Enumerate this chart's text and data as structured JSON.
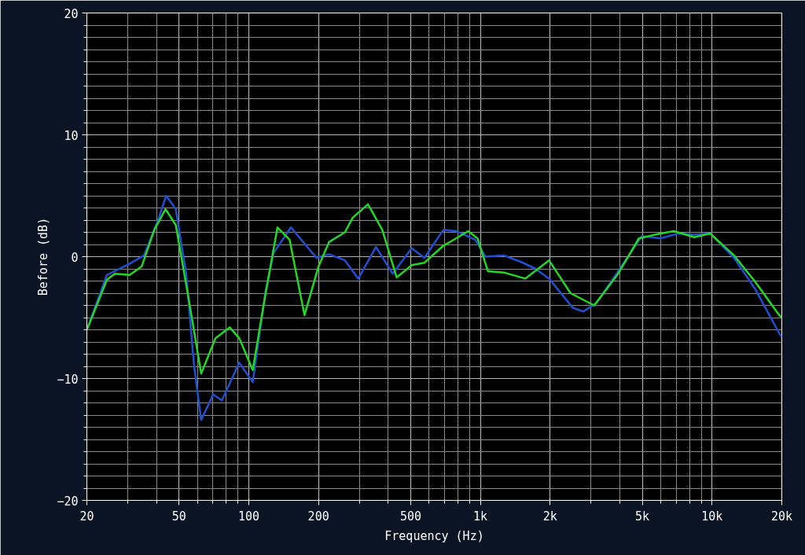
{
  "chart_data": {
    "type": "line",
    "xlabel": "Frequency (Hz)",
    "ylabel": "Before (dB)",
    "log": "x",
    "grid": true,
    "marker": "none",
    "line_style": "solid",
    "xlim": [
      20,
      20000
    ],
    "ylim": [
      -20,
      20
    ],
    "xticks": [
      20,
      50,
      100,
      200,
      500,
      {
        "value": 1000,
        "label": "1k"
      },
      {
        "value": 2000,
        "label": "2k"
      },
      {
        "value": 5000,
        "label": "5k"
      },
      {
        "value": 10000,
        "label": "10k"
      },
      {
        "value": 20000,
        "label": "20k"
      }
    ],
    "yticks": [
      -20,
      -10,
      0,
      10,
      20
    ],
    "series": [
      {
        "color": "#2050d0",
        "x": [
          20,
          24.4,
          30.1,
          35.3,
          40.4,
          44,
          48.4,
          53.7,
          58,
          62.3,
          70.2,
          76.5,
          91,
          104,
          118,
          128,
          152,
          196,
          222,
          260,
          297,
          354,
          418,
          505,
          573,
          692,
          785,
          949,
          1052,
          1262,
          1525,
          1730,
          1978,
          2506,
          2780,
          3175,
          3930,
          4980,
          5970,
          7160,
          8390,
          9820,
          12440,
          15400,
          19500,
          20000
        ],
        "values": [
          -6.0,
          -1.5,
          -0.65,
          0.1,
          2.9,
          5.0,
          3.9,
          -1.4,
          -8.9,
          -13.4,
          -11.3,
          -11.8,
          -8.7,
          -10.3,
          -2.9,
          0.3,
          2.4,
          -0.1,
          0.2,
          -0.3,
          -1.8,
          0.8,
          -1.4,
          0.7,
          -0.1,
          2.2,
          2.1,
          1.4,
          0,
          0.1,
          -0.5,
          -1.0,
          -1.8,
          -4.2,
          -4.5,
          -3.8,
          -1.2,
          1.7,
          1.5,
          1.9,
          1.8,
          1.9,
          -0.1,
          -2.7,
          -6.3,
          -6.6
        ]
      },
      {
        "color": "#22d822",
        "x": [
          20,
          24.4,
          26.4,
          30.6,
          34.5,
          39.1,
          43.7,
          48.4,
          55.4,
          62.3,
          71.8,
          82.8,
          91,
          104,
          118,
          133,
          150,
          174,
          200,
          222,
          260,
          281,
          327,
          377,
          435,
          505,
          573,
          692,
          785,
          885,
          972,
          1077,
          1262,
          1560,
          1978,
          2450,
          3098,
          3930,
          4830,
          5650,
          6830,
          8390,
          9820,
          12440,
          15400,
          19500,
          20000
        ],
        "values": [
          -6.0,
          -1.9,
          -1.4,
          -1.5,
          -0.8,
          2.2,
          3.9,
          2.6,
          -3.8,
          -9.6,
          -6.7,
          -5.8,
          -6.7,
          -9.3,
          -3.1,
          2.4,
          1.4,
          -4.8,
          -0.8,
          1.2,
          2.0,
          3.2,
          4.3,
          2.2,
          -1.7,
          -0.7,
          -0.5,
          0.9,
          1.5,
          2.1,
          1.5,
          -1.2,
          -1.3,
          -1.8,
          -0.3,
          -3.0,
          -4.0,
          -1.4,
          1.5,
          1.8,
          2.1,
          1.6,
          1.9,
          0.1,
          -2.1,
          -4.8,
          -5.0
        ]
      }
    ]
  }
}
